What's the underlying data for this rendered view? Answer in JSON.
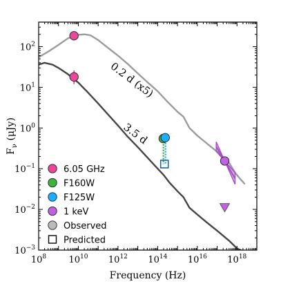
{
  "chart_data": {
    "type": "line",
    "title": "",
    "xlabel": "Frequency (Hz)",
    "ylabel_main": "F",
    "ylabel_sub": "ν",
    "ylabel_unit": " (μJy)",
    "xscale": "log",
    "yscale": "log",
    "xlim": [
      100000000.0,
      1e+19
    ],
    "ylim": [
      0.001,
      400
    ],
    "x_ticks": [
      {
        "exp": 8,
        "label": "10",
        "sup": "8"
      },
      {
        "exp": 10,
        "label": "10",
        "sup": "10"
      },
      {
        "exp": 12,
        "label": "10",
        "sup": "12"
      },
      {
        "exp": 14,
        "label": "10",
        "sup": "14"
      },
      {
        "exp": 16,
        "label": "10",
        "sup": "16"
      },
      {
        "exp": 18,
        "label": "10",
        "sup": "18"
      }
    ],
    "y_ticks": [
      {
        "exp": -3,
        "label": "10",
        "sup": "−3"
      },
      {
        "exp": -2,
        "label": "10",
        "sup": "−2"
      },
      {
        "exp": -1,
        "label": "10",
        "sup": "−1"
      },
      {
        "exp": 0,
        "label": "10",
        "sup": "0"
      },
      {
        "exp": 1,
        "label": "10",
        "sup": "1"
      },
      {
        "exp": 2,
        "label": "10",
        "sup": "2"
      }
    ],
    "annotations": [
      "0.2 d (x5)",
      "3.5 d"
    ],
    "series": [
      {
        "name": "0.2 d (x5)",
        "color": "#9b9b9b",
        "points": [
          [
            100000000.0,
            55
          ],
          [
            300000000.0,
            75
          ],
          [
            1000000000.0,
            110
          ],
          [
            3000000000.0,
            160
          ],
          [
            10000000000.0,
            195
          ],
          [
            20000000000.0,
            200
          ],
          [
            40000000000.0,
            190
          ],
          [
            100000000000.0,
            145
          ],
          [
            300000000000.0,
            95
          ],
          [
            1000000000000.0,
            60
          ],
          [
            3000000000000.0,
            38
          ],
          [
            10000000000000.0,
            22
          ],
          [
            30000000000000.0,
            13.5
          ],
          [
            100000000000000.0,
            8
          ],
          [
            300000000000000.0,
            4.5
          ],
          [
            1000000000000000.0,
            2.5
          ],
          [
            2000000000000000.0,
            1.9
          ],
          [
            4000000000000000.0,
            1.0
          ],
          [
            1e+16,
            0.65
          ],
          [
            3e+16,
            0.42
          ],
          [
            1e+17,
            0.26
          ],
          [
            4e+17,
            0.14
          ],
          [
            8e+17,
            0.08
          ],
          [
            1.5e+18,
            0.055
          ],
          [
            2.5e+18,
            0.042
          ]
        ]
      },
      {
        "name": "3.5 d",
        "color": "#444444",
        "points": [
          [
            100000000.0,
            36
          ],
          [
            200000000.0,
            40
          ],
          [
            500000000.0,
            36
          ],
          [
            1000000000.0,
            30
          ],
          [
            3000000000.0,
            21
          ],
          [
            10000000000.0,
            13
          ],
          [
            30000000000.0,
            7.5
          ],
          [
            100000000000.0,
            4
          ],
          [
            300000000000.0,
            2.2
          ],
          [
            1000000000000.0,
            1.15
          ],
          [
            3000000000000.0,
            0.62
          ],
          [
            10000000000000.0,
            0.34
          ],
          [
            30000000000000.0,
            0.19
          ],
          [
            100000000000000.0,
            0.1
          ],
          [
            200000000000000.0,
            0.07
          ],
          [
            400000000000000.0,
            0.045
          ],
          [
            1000000000000000.0,
            0.028
          ],
          [
            2000000000000000.0,
            0.02
          ],
          [
            4000000000000000.0,
            0.011
          ],
          [
            1e+16,
            0.0075
          ],
          [
            3e+16,
            0.0048
          ],
          [
            1e+17,
            0.003
          ],
          [
            4e+17,
            0.0017
          ],
          [
            1e+18,
            0.0011
          ],
          [
            2.5e+18,
            0.0009
          ]
        ]
      }
    ],
    "markers": [
      {
        "kind": "circle",
        "x": 6050000000.0,
        "y": 185,
        "color": "#e8479a"
      },
      {
        "kind": "circle",
        "x": 6050000000.0,
        "y": 18,
        "color": "#e8479a",
        "err": [
          12,
          26
        ]
      },
      {
        "kind": "circle",
        "x": 190000000000000.0,
        "y": 0.55,
        "color": "#3cb33c"
      },
      {
        "kind": "circle",
        "x": 240000000000000.0,
        "y": 0.58,
        "color": "#1eaeff"
      },
      {
        "kind": "square",
        "x": 220000000000000.0,
        "y": 0.13,
        "color": "#2060b0"
      },
      {
        "kind": "circle",
        "x": 2.4e+17,
        "y": 0.155,
        "color": "#c061e0"
      },
      {
        "kind": "triangle",
        "x": 2.4e+17,
        "y": 0.011,
        "color": "#c061e0"
      }
    ],
    "connector": {
      "x": 220000000000000.0,
      "y_top": 0.55,
      "y_bottom": 0.13,
      "colors": [
        "#3cb33c",
        "#1eaeff"
      ]
    },
    "xray_bowtie": {
      "color": "#a64cc8",
      "x0": 9e+16,
      "x1": 8e+17,
      "y_pivot": 0.155,
      "x_pivot": 2.4e+17,
      "slope_high": -1.1,
      "slope_low": -0.55
    },
    "legend": {
      "placement": "lower-left",
      "entries": [
        {
          "label": "6.05 GHz",
          "marker": "circle",
          "color": "#e8479a"
        },
        {
          "label": "F160W",
          "marker": "circle",
          "color": "#3cb33c"
        },
        {
          "label": "F125W",
          "marker": "circle",
          "color": "#1eaeff"
        },
        {
          "label": "1 keV",
          "marker": "circle",
          "color": "#c061e0"
        },
        {
          "label": "Observed",
          "marker": "circle",
          "color": "#bbbbbb"
        },
        {
          "label": "Predicted",
          "marker": "square",
          "color": "none"
        }
      ]
    },
    "grid": false
  }
}
